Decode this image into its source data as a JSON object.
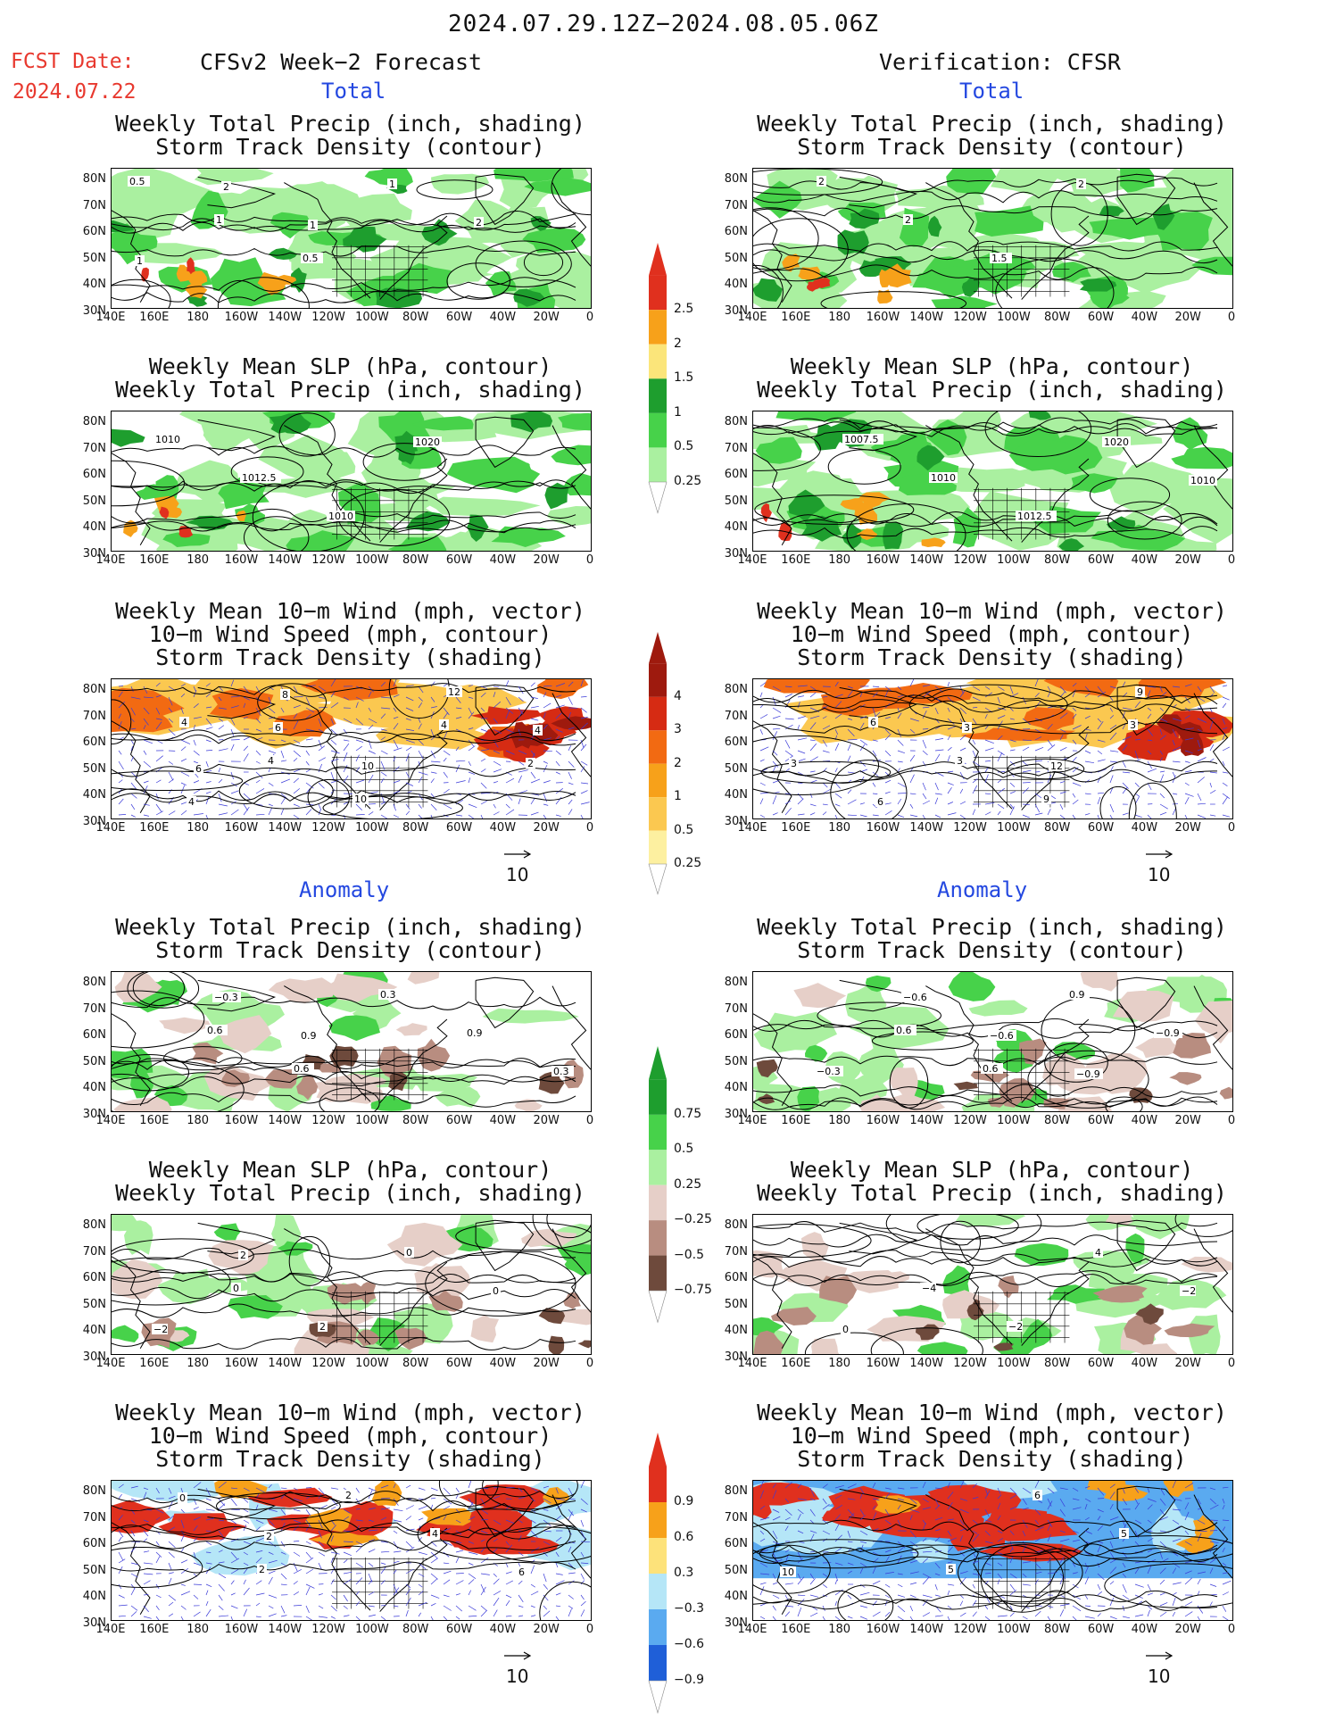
{
  "header": {
    "title": "2024.07.29.12Z−2024.08.05.06Z",
    "fcst_label": "FCST Date:",
    "fcst_date": "2024.07.22",
    "left_title": "CFSv2 Week−2 Forecast",
    "right_title": "Verification: CFSR",
    "total_label": "Total",
    "anomaly_label": "Anomaly"
  },
  "titles": {
    "precip_storm": [
      "Weekly Total Precip (inch, shading)",
      "Storm Track Density (contour)"
    ],
    "slp_precip": [
      "Weekly Mean SLP (hPa, contour)",
      "Weekly Total Precip (inch, shading)"
    ],
    "wind_storm": [
      "Weekly Mean 10−m Wind (mph, vector)",
      "10−m Wind Speed (mph, contour)",
      "Storm Track Density (shading)"
    ]
  },
  "axes": {
    "lat_labels": [
      "80N",
      "70N",
      "60N",
      "50N",
      "40N",
      "30N"
    ],
    "lon_labels": [
      "140E",
      "160E",
      "180",
      "160W",
      "140W",
      "120W",
      "100W",
      "80W",
      "60W",
      "40W",
      "20W",
      "0"
    ]
  },
  "vector_ref": "10",
  "colorbars": {
    "total_precip": {
      "labels": [
        "2.5",
        "2",
        "1.5",
        "1",
        "0.5",
        "0.25"
      ],
      "colors": [
        "#e0301e",
        "#f7a11a",
        "#fbe57a",
        "#1e9e2e",
        "#47d24a",
        "#aaf0a0"
      ]
    },
    "total_storm": {
      "labels": [
        "4",
        "3",
        "2",
        "1",
        "0.5",
        "0.25"
      ],
      "colors": [
        "#9e1a0e",
        "#d62b13",
        "#f26a12",
        "#f7a11a",
        "#fbc850",
        "#fdf0a0"
      ]
    },
    "anom_precip": {
      "labels": [
        "0.75",
        "0.5",
        "0.25",
        "−0.25",
        "−0.5",
        "−0.75"
      ],
      "colors": [
        "#1e9e2e",
        "#47d24a",
        "#aaf0a0",
        "#e6cfc8",
        "#b88d80",
        "#6e4a3c"
      ]
    },
    "anom_storm": {
      "labels": [
        "0.9",
        "0.6",
        "0.3",
        "−0.3",
        "−0.6",
        "−0.9"
      ],
      "colors": [
        "#e0301e",
        "#f7a11a",
        "#fde27a",
        "#b5e6f7",
        "#5aaaf0",
        "#1f5fd8"
      ]
    }
  },
  "contour_labels": {
    "fc_total_precip": [
      "0.5",
      "1",
      "0.5",
      "1",
      "2",
      "1",
      "2",
      "1"
    ],
    "vf_total_precip": [
      "2",
      "2",
      "1.5",
      "2"
    ],
    "fc_total_slp": [
      "1010",
      "1012.5",
      "1010",
      "1020"
    ],
    "vf_total_slp": [
      "1007.5",
      "1010",
      "1012.5",
      "1020",
      "1010"
    ],
    "fc_total_wind": [
      "4",
      "4",
      "10",
      "4",
      "2",
      "4",
      "6",
      "10",
      "12",
      "4",
      "6",
      "8"
    ],
    "vf_total_wind": [
      "6",
      "3",
      "9",
      "3",
      "3",
      "6",
      "3",
      "12",
      "9"
    ],
    "fc_anom_precip": [
      "0.6",
      "0.6",
      "0.3",
      "0.9",
      "0.3",
      "−0.3",
      "0.9"
    ],
    "vf_anom_precip": [
      "0.6",
      "0.6",
      "0.9",
      "−0.9",
      "−0.3",
      "−0.6",
      "−0.6",
      "−0.9"
    ],
    "fc_anom_slp": [
      "0",
      "2",
      "0",
      "0",
      "−2",
      "2"
    ],
    "vf_anom_slp": [
      "−4",
      "−2",
      "4",
      "−2",
      "0"
    ],
    "fc_anom_wind": [
      "2",
      "2",
      "4",
      "6",
      "0",
      "2"
    ],
    "vf_anom_wind": [
      "5",
      "6",
      "5",
      "10"
    ]
  }
}
